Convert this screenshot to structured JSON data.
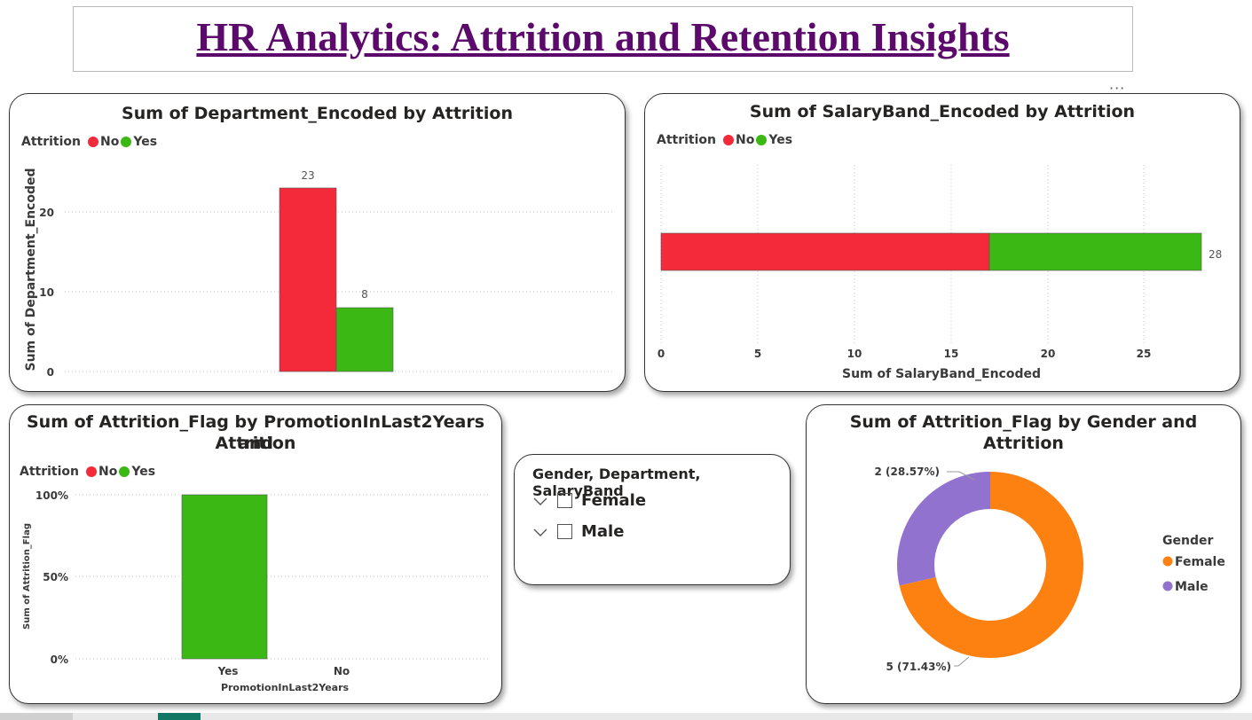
{
  "page_title": "HR Analytics: Attrition and Retention Insights",
  "more_options": "···",
  "colors": {
    "no": "#f42a3a",
    "yes": "#3cb814",
    "female": "#fd8111",
    "male": "#9272cf",
    "title": "#5b0a6b"
  },
  "legend_common": {
    "title": "Attrition",
    "no": "No",
    "yes": "Yes"
  },
  "chart1": {
    "title": "Sum of Department_Encoded by Attrition",
    "ylabel": "Sum of Department_Encoded",
    "ticks": [
      "0",
      "10",
      "20"
    ],
    "label_no": "23",
    "label_yes": "8"
  },
  "chart2": {
    "title": "Sum of SalaryBand_Encoded by Attrition",
    "xlabel": "Sum of SalaryBand_Encoded",
    "ticks": [
      "0",
      "5",
      "10",
      "15",
      "20",
      "25"
    ],
    "total_label": "28"
  },
  "chart3": {
    "title_line1": "Sum of Attrition_Flag by PromotionInLast2Years and",
    "title_line2": "Attrition",
    "ylabel": "Sum of Attrition_Flag",
    "xlabel": "PromotionInLast2Years",
    "ticks": [
      "0%",
      "50%",
      "100%"
    ],
    "cat_yes": "Yes",
    "cat_no": "No"
  },
  "slicer": {
    "title": "Gender, Department, SalaryBand",
    "items": [
      "Female",
      "Male"
    ]
  },
  "chart4": {
    "title": "Sum of Attrition_Flag by Gender and Attrition",
    "legend_title": "Gender",
    "legend_female": "Female",
    "legend_male": "Male",
    "label_male": "2 (28.57%)",
    "label_female": "5 (71.43%)"
  },
  "chart_data": [
    {
      "type": "bar",
      "title": "Sum of Department_Encoded by Attrition",
      "ylabel": "Sum of Department_Encoded",
      "ylim": [
        0,
        25
      ],
      "legend_title": "Attrition",
      "legend_position": "top-left",
      "series": [
        {
          "name": "No",
          "values": [
            23
          ]
        },
        {
          "name": "Yes",
          "values": [
            8
          ]
        }
      ],
      "grid": true
    },
    {
      "type": "bar",
      "orientation": "horizontal-stacked",
      "title": "Sum of SalaryBand_Encoded by Attrition",
      "xlabel": "Sum of SalaryBand_Encoded",
      "xlim": [
        0,
        28
      ],
      "legend_title": "Attrition",
      "legend_position": "top-left",
      "series": [
        {
          "name": "No",
          "values": [
            17
          ]
        },
        {
          "name": "Yes",
          "values": [
            11
          ]
        }
      ],
      "total": 28,
      "grid": true
    },
    {
      "type": "bar",
      "stacking": "100%",
      "title": "Sum of Attrition_Flag by PromotionInLast2Years and Attrition",
      "xlabel": "PromotionInLast2Years",
      "ylabel": "Sum of Attrition_Flag",
      "categories": [
        "Yes",
        "No"
      ],
      "legend_title": "Attrition",
      "legend_position": "top-left",
      "series": [
        {
          "name": "No",
          "values": [
            0,
            0
          ]
        },
        {
          "name": "Yes",
          "values": [
            100,
            0
          ]
        }
      ],
      "ylim": [
        0,
        100
      ],
      "grid": true
    },
    {
      "type": "pie",
      "subtype": "donut",
      "title": "Sum of Attrition_Flag by Gender and Attrition",
      "legend_title": "Gender",
      "legend_position": "right",
      "categories": [
        "Female",
        "Male"
      ],
      "values": [
        5,
        2
      ],
      "percentages": [
        71.43,
        28.57
      ]
    }
  ]
}
